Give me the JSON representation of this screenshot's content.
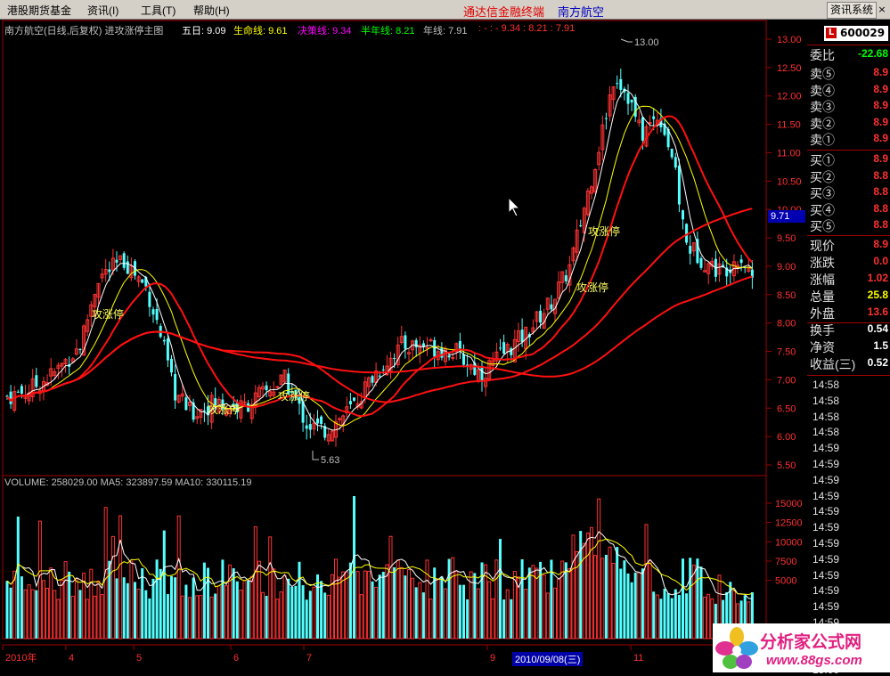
{
  "menu": {
    "items": [
      "港股期货基金",
      "资讯(I)",
      "工具(T)",
      "帮助(H)"
    ],
    "app_title": "通达信金融终端",
    "stock_title": "南方航空",
    "sys_button": "资讯系统",
    "close_glyph": "×"
  },
  "header": {
    "name": "南方航空(日线,后复权) 进攻涨停主图",
    "five_label": "五日: 9.09",
    "life_label": "生命线: 9.61",
    "decide_label": "决策线: 9.34",
    "half_label": "半年线: 8.21",
    "year_label": "年线: 7.91",
    "extra": ": - : - 9.34 : 8.21 : 7.91"
  },
  "volume_header": "VOLUME: 258029.00  MA5: 323897.59  MA10: 330115.19",
  "price_axis": [
    "13.00",
    "12.50",
    "12.00",
    "11.50",
    "11.00",
    "10.50",
    "10.00",
    "9.50",
    "9.00",
    "8.50",
    "8.00",
    "7.50",
    "7.00",
    "6.50",
    "6.00",
    "5.50"
  ],
  "volume_axis": [
    "15000",
    "12500",
    "10000",
    "7500",
    "5000"
  ],
  "cursor_price": "9.71",
  "high_label": "13.00",
  "low_label": "5.63",
  "signal_label": "攻涨停",
  "date_axis": [
    "2010年",
    "4",
    "5",
    "6",
    "7",
    "9",
    "11"
  ],
  "date_highlight": "2010/09/08(三)",
  "colors": {
    "up": "#ff3232",
    "down": "#54ffff",
    "ma5": "#ffffff",
    "ma_life": "#ffff00",
    "ma_red": "#ff1010",
    "purple": "#ff00ff"
  },
  "quote": {
    "code": "600029",
    "code_icon": "L",
    "ratio": {
      "label": "委比",
      "value": "-22.68"
    },
    "asks": [
      {
        "label": "卖⑤",
        "value": "8.9"
      },
      {
        "label": "卖④",
        "value": "8.9"
      },
      {
        "label": "卖③",
        "value": "8.9"
      },
      {
        "label": "卖②",
        "value": "8.9"
      },
      {
        "label": "卖①",
        "value": "8.9"
      }
    ],
    "bids": [
      {
        "label": "买①",
        "value": "8.9"
      },
      {
        "label": "买②",
        "value": "8.8"
      },
      {
        "label": "买③",
        "value": "8.8"
      },
      {
        "label": "买④",
        "value": "8.8"
      },
      {
        "label": "买⑤",
        "value": "8.8"
      }
    ],
    "stats": [
      {
        "label": "现价",
        "value": "8.9"
      },
      {
        "label": "涨跌",
        "value": "0.0"
      },
      {
        "label": "涨幅",
        "value": "1.02"
      },
      {
        "label": "总量",
        "value": "25.8"
      },
      {
        "label": "外盘",
        "value": "13.6"
      },
      {
        "label": "换手",
        "value": "0.54"
      },
      {
        "label": "净资",
        "value": "1.5"
      },
      {
        "label": "收益(三)",
        "value": "0.52"
      }
    ],
    "times": [
      "14:58",
      "14:58",
      "14:58",
      "14:58",
      "14:59",
      "14:59",
      "14:59",
      "14:59",
      "14:59",
      "14:59",
      "14:59",
      "14:59",
      "14:59",
      "14:59",
      "14:59",
      "14:59",
      "14:59",
      "14:59",
      "15:00"
    ]
  },
  "watermark": {
    "title": "分析家公式网",
    "url": "www.88gs.com"
  }
}
